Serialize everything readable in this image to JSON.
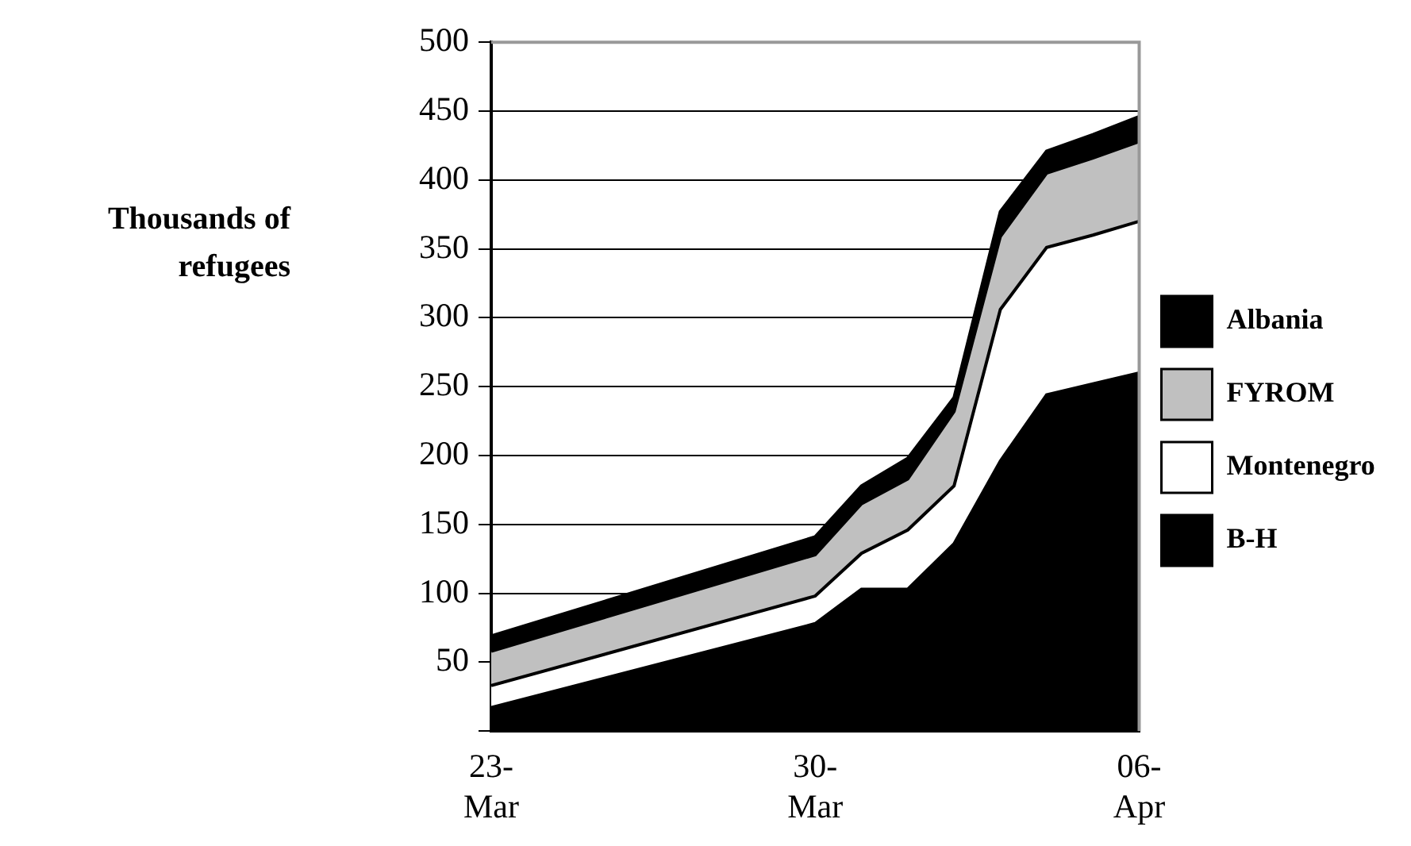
{
  "chart_data": {
    "type": "area",
    "stacked": true,
    "ylabel": "Thousands of refugees",
    "x": [
      "--03-23",
      "--03-30",
      "--03-31",
      "--04-01",
      "--04-02",
      "--04-03",
      "--04-04",
      "--04-05",
      "--04-06"
    ],
    "series": [
      {
        "name": "B-H",
        "color": "#000000",
        "values": [
          17,
          78,
          103,
          103,
          136,
          196,
          244,
          252,
          260
        ]
      },
      {
        "name": "Montenegro",
        "color": "#ffffff",
        "values": [
          16,
          20,
          26,
          43,
          42,
          110,
          107,
          108,
          110
        ]
      },
      {
        "name": "FYROM",
        "color": "#c0c0c0",
        "values": [
          25,
          30,
          36,
          37,
          54,
          53,
          54,
          56,
          58
        ]
      },
      {
        "name": "Albania",
        "color": "#000000",
        "values": [
          11,
          13,
          13,
          15,
          10,
          18,
          16,
          17,
          18
        ]
      }
    ],
    "xlim": [
      "--03-23",
      "--04-06"
    ],
    "xticks": [
      {
        "value": "--03-23",
        "label": "23-Mar"
      },
      {
        "value": "--03-30",
        "label": "30-Mar"
      },
      {
        "value": "--04-06",
        "label": "06-Apr"
      }
    ],
    "ylim": [
      0,
      500
    ],
    "yticks": [
      {
        "value": 0,
        "label": null
      },
      50,
      100,
      150,
      200,
      250,
      300,
      350,
      400,
      450,
      500
    ],
    "grid": "y",
    "legend": "right"
  }
}
